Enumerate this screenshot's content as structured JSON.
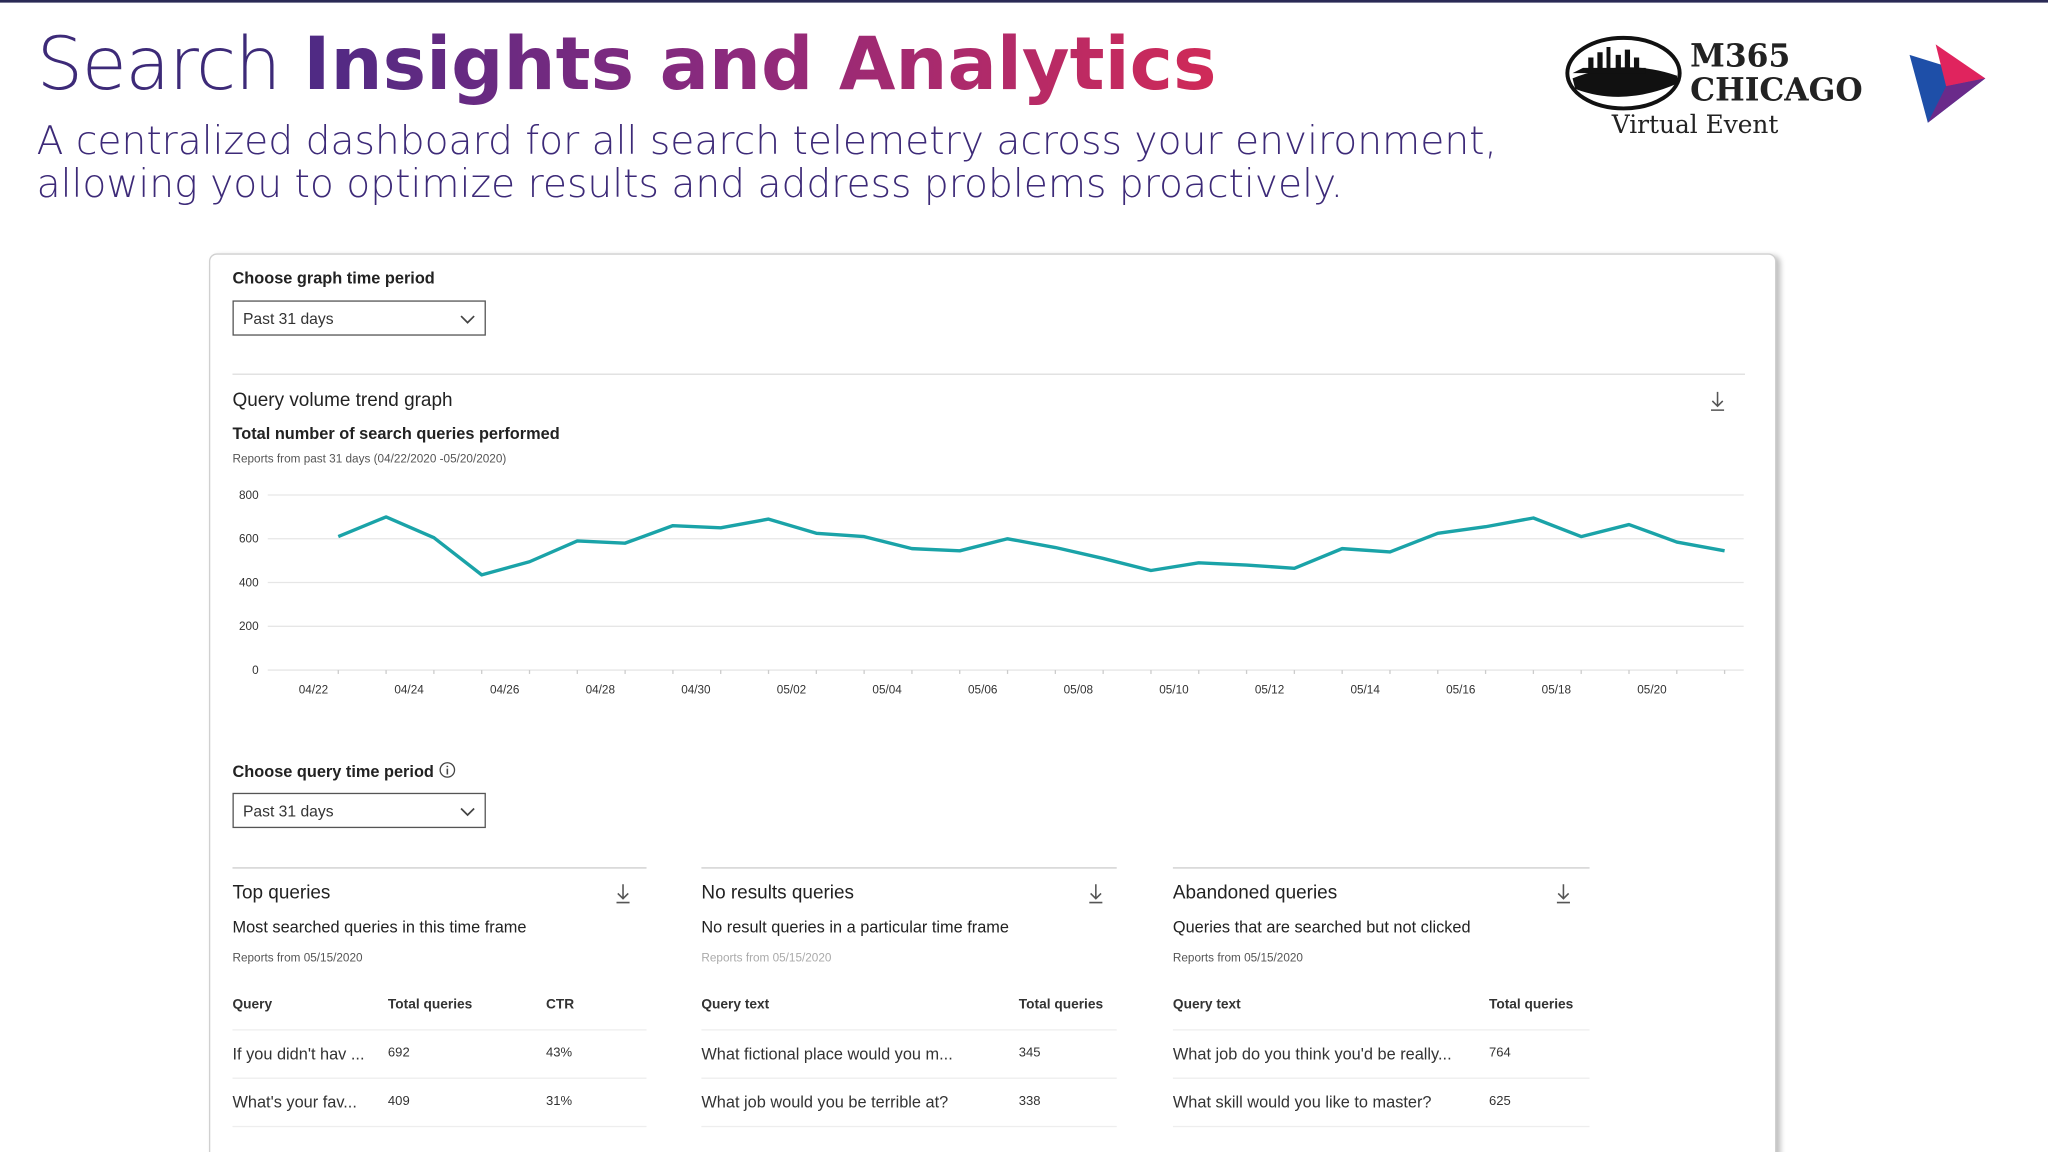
{
  "header": {
    "title_light": "Search",
    "title_bold": "Insights and Analytics",
    "subtitle": "A centralized dashboard for all search telemetry across your environment, allowing you to optimize results and address problems proactively."
  },
  "logo": {
    "line1": "M365",
    "line2": "CHICAGO",
    "tagline": "Virtual Event"
  },
  "graph_period": {
    "label": "Choose graph time period",
    "selected": "Past 31 days"
  },
  "chart_data": {
    "type": "line",
    "title": "Query volume trend graph",
    "subtitle": "Total number of search queries performed",
    "note": "Reports from past 31 days (04/22/2020 -05/20/2020)",
    "categories": [
      "04/22",
      null,
      "04/24",
      null,
      "04/26",
      null,
      "04/28",
      null,
      "04/30",
      null,
      "05/02",
      null,
      "05/04",
      null,
      "05/06",
      null,
      "05/08",
      null,
      "05/10",
      null,
      "05/12",
      null,
      "05/14",
      null,
      "05/16",
      null,
      "05/18",
      null,
      "05/20",
      null
    ],
    "values": [
      610,
      700,
      605,
      435,
      495,
      590,
      580,
      660,
      650,
      690,
      625,
      610,
      555,
      545,
      600,
      560,
      510,
      455,
      490,
      480,
      465,
      555,
      540,
      625,
      655,
      695,
      610,
      665,
      585,
      545
    ],
    "color": "#1aa3a8",
    "ylim": [
      0,
      800
    ],
    "yticks": [
      0,
      200,
      400,
      600,
      800
    ],
    "grid": true
  },
  "query_period": {
    "label": "Choose query time period",
    "selected": "Past 31 days"
  },
  "tables": [
    {
      "title": "Top queries",
      "description": "Most searched queries in this time frame",
      "note": "Reports from 05/15/2020",
      "columns": [
        "Query",
        "Total queries",
        "CTR"
      ],
      "rows": [
        [
          "If you didn't hav ...",
          "692",
          "43%"
        ],
        [
          "What's your fav...",
          "409",
          "31%"
        ]
      ]
    },
    {
      "title": "No results queries",
      "description": "No result queries in a particular time frame",
      "note": "Reports from 05/15/2020",
      "columns": [
        "Query text",
        "Total queries"
      ],
      "rows": [
        [
          "What fictional place would you m...",
          "345"
        ],
        [
          "What job would you be terrible at?",
          "338"
        ]
      ]
    },
    {
      "title": "Abandoned queries",
      "description": "Queries that are searched but not clicked",
      "note": "Reports from 05/15/2020",
      "columns": [
        "Query text",
        "Total queries"
      ],
      "rows": [
        [
          "What job do you think you'd be really...",
          "764"
        ],
        [
          "What skill would you like to master?",
          "625"
        ]
      ]
    }
  ]
}
